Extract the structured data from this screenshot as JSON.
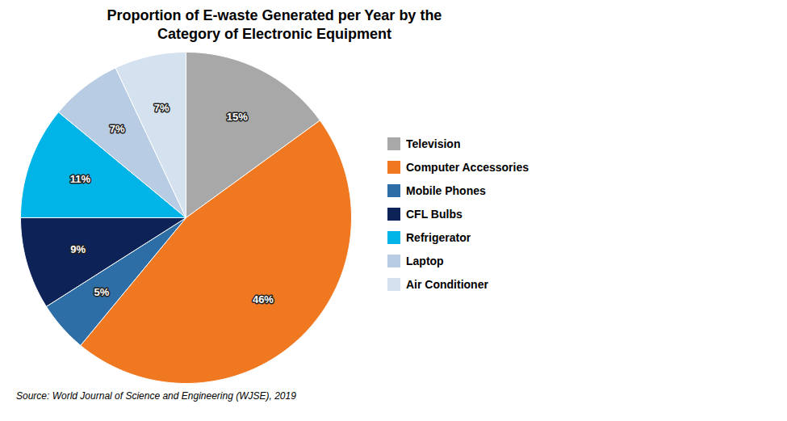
{
  "chart_data": {
    "type": "pie",
    "title": "Proportion of E-waste Generated per Year by the\nCategory of Electronic Equipment",
    "categories": [
      "Television",
      "Computer Accessories",
      "Mobile Phones",
      "CFL Bulbs",
      "Refrigerator",
      "Laptop",
      "Air Conditioner"
    ],
    "values": [
      15,
      46,
      5,
      9,
      11,
      7,
      7
    ],
    "value_labels": [
      "15%",
      "46%",
      "5%",
      "9%",
      "11%",
      "7%",
      "7%"
    ],
    "colors": [
      "#a8a8a8",
      "#f07820",
      "#2e6ea6",
      "#0d2357",
      "#00b4e8",
      "#b8cce4",
      "#d4e2f0"
    ],
    "data_labels": true,
    "legend": "right",
    "annotations": [
      "Source: World Journal of Science and Engineering (WJSE), 2019"
    ]
  }
}
